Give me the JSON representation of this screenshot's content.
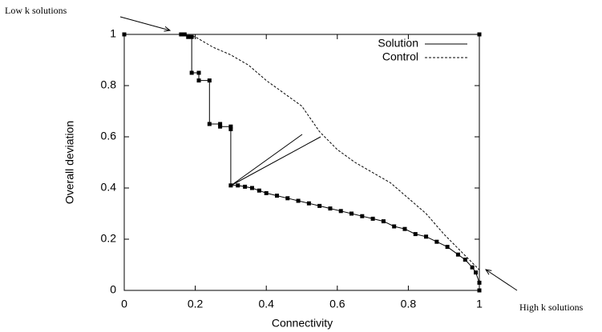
{
  "chart_data": {
    "type": "line",
    "xlabel": "Connectivity",
    "ylabel": "Overall deviation",
    "annotations": [
      "Low k solutions",
      "High k solutions"
    ],
    "xlim": [
      0,
      1
    ],
    "ylim": [
      0,
      1
    ],
    "xticks": [
      0,
      0.2,
      0.4,
      0.6,
      0.8,
      1
    ],
    "yticks": [
      0,
      0.2,
      0.4,
      0.6,
      0.8,
      1
    ],
    "grid": false,
    "legend": "top-right",
    "series": [
      {
        "name": "Solution",
        "color": "#000000",
        "style": "solid",
        "markers": true,
        "x": [
          0,
          0.16,
          0.17,
          0.18,
          0.19,
          0.19,
          0.21,
          0.21,
          0.24,
          0.24,
          0.27,
          0.27,
          0.3,
          0.3,
          0.3,
          0.32,
          0.34,
          0.36,
          0.38,
          0.4,
          0.43,
          0.46,
          0.49,
          0.52,
          0.55,
          0.58,
          0.61,
          0.64,
          0.67,
          0.7,
          0.73,
          0.76,
          0.79,
          0.82,
          0.85,
          0.88,
          0.91,
          0.94,
          0.96,
          0.98,
          0.99,
          1.0,
          1.0,
          1.0,
          1.0
        ],
        "values": [
          1,
          1,
          1,
          0.99,
          0.99,
          0.85,
          0.85,
          0.82,
          0.82,
          0.65,
          0.65,
          0.64,
          0.64,
          0.63,
          0.41,
          0.41,
          0.405,
          0.4,
          0.39,
          0.38,
          0.37,
          0.36,
          0.35,
          0.34,
          0.33,
          0.32,
          0.31,
          0.3,
          0.29,
          0.28,
          0.27,
          0.25,
          0.24,
          0.22,
          0.21,
          0.19,
          0.17,
          0.14,
          0.12,
          0.09,
          0.07,
          0.03,
          0,
          null,
          1
        ]
      },
      {
        "name": "Control",
        "color": "#000000",
        "style": "dashed",
        "markers": false,
        "x": [
          0.17,
          0.2,
          0.25,
          0.3,
          0.35,
          0.4,
          0.45,
          0.5,
          0.55,
          0.6,
          0.65,
          0.7,
          0.75,
          0.8,
          0.85,
          0.9,
          0.95,
          1.0
        ],
        "values": [
          1,
          0.99,
          0.95,
          0.92,
          0.88,
          0.82,
          0.77,
          0.72,
          0.62,
          0.55,
          0.5,
          0.46,
          0.42,
          0.36,
          0.3,
          0.22,
          0.15,
          0.08
        ]
      }
    ]
  }
}
